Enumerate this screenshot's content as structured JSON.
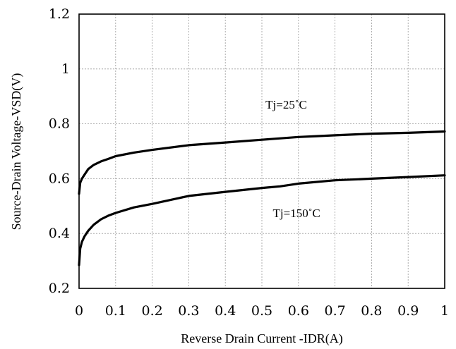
{
  "chart_data": {
    "type": "line",
    "title": "",
    "xlabel": "Reverse Drain Current -IDR(A)",
    "ylabel": "Source-Drain Voltage-VSD(V)",
    "xlim": [
      0,
      1
    ],
    "ylim": [
      0.2,
      1.2
    ],
    "xticks": [
      "0",
      "0.1",
      "0.2",
      "0.3",
      "0.4",
      "0.5",
      "0.6",
      "0.7",
      "0.8",
      "0.9",
      "1"
    ],
    "yticks": [
      "0.2",
      "0.4",
      "0.6",
      "0.8",
      "1",
      "1.2"
    ],
    "xtick_values": [
      0,
      0.1,
      0.2,
      0.3,
      0.4,
      0.5,
      0.6,
      0.7,
      0.8,
      0.9,
      1
    ],
    "ytick_values": [
      0.2,
      0.4,
      0.6,
      0.8,
      1.0,
      1.2
    ],
    "grid": true,
    "legend": "none",
    "series": [
      {
        "x": [
          0.0,
          0.003,
          0.008,
          0.015,
          0.025,
          0.04,
          0.06,
          0.08,
          0.1,
          0.15,
          0.2,
          0.3,
          0.4,
          0.5,
          0.6,
          0.65,
          0.7,
          0.8,
          0.9,
          1.0
        ],
        "y": [
          0.545,
          0.585,
          0.6,
          0.615,
          0.635,
          0.65,
          0.663,
          0.672,
          0.682,
          0.695,
          0.705,
          0.722,
          0.732,
          0.742,
          0.752,
          0.755,
          0.758,
          0.764,
          0.767,
          0.772
        ]
      },
      {
        "x": [
          0.0,
          0.003,
          0.008,
          0.015,
          0.025,
          0.04,
          0.06,
          0.08,
          0.1,
          0.15,
          0.2,
          0.3,
          0.4,
          0.5,
          0.55,
          0.6,
          0.7,
          0.8,
          0.9,
          1.0
        ],
        "y": [
          0.285,
          0.345,
          0.37,
          0.39,
          0.41,
          0.432,
          0.452,
          0.465,
          0.475,
          0.495,
          0.508,
          0.537,
          0.552,
          0.566,
          0.572,
          0.582,
          0.594,
          0.6,
          0.606,
          0.612
        ]
      }
    ],
    "annotations": [
      {
        "text": "Tj=25˚C",
        "x": 0.51,
        "y": 0.855
      },
      {
        "text": "Tj=150˚C",
        "x": 0.53,
        "y": 0.46
      }
    ]
  }
}
